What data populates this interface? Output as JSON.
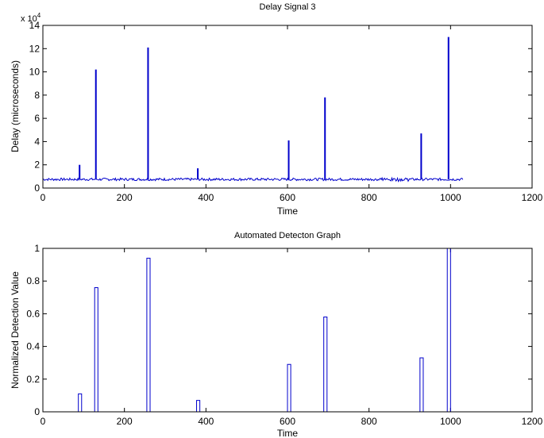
{
  "chart_data": [
    {
      "type": "line",
      "title": "Delay Signal 3",
      "xlabel": "Time",
      "ylabel": "Delay (microseconds)",
      "y_multiplier_label": "x 10",
      "y_multiplier_exponent": "4",
      "xlim": [
        0,
        1200
      ],
      "ylim": [
        0,
        14
      ],
      "xticks": [
        0,
        200,
        400,
        600,
        800,
        1000,
        1200
      ],
      "yticks": [
        0,
        2,
        4,
        6,
        8,
        10,
        12,
        14
      ],
      "grid": false,
      "line_color": "#0000cc",
      "x_range": [
        0,
        1030
      ],
      "baseline": 0.75,
      "spikes": [
        {
          "x": 90,
          "y": 2.0
        },
        {
          "x": 130,
          "y": 10.2
        },
        {
          "x": 258,
          "y": 12.1
        },
        {
          "x": 380,
          "y": 1.7
        },
        {
          "x": 603,
          "y": 4.1
        },
        {
          "x": 692,
          "y": 7.8
        },
        {
          "x": 928,
          "y": 4.7
        },
        {
          "x": 995,
          "y": 13.0
        }
      ]
    },
    {
      "type": "line",
      "title": "Automated Detecton Graph",
      "xlabel": "Time",
      "ylabel": "Normalized Detection Value",
      "xlim": [
        0,
        1200
      ],
      "ylim": [
        0,
        1
      ],
      "xticks": [
        0,
        200,
        400,
        600,
        800,
        1000,
        1200
      ],
      "yticks": [
        0,
        0.2,
        0.4,
        0.6,
        0.8,
        1
      ],
      "grid": false,
      "line_color": "#0000cc",
      "x_range": [
        0,
        1190
      ],
      "pulses": [
        {
          "x_start": 87,
          "x_end": 95,
          "y": 0.11
        },
        {
          "x_start": 127,
          "x_end": 135,
          "y": 0.76
        },
        {
          "x_start": 255,
          "x_end": 263,
          "y": 0.94
        },
        {
          "x_start": 377,
          "x_end": 385,
          "y": 0.07
        },
        {
          "x_start": 600,
          "x_end": 608,
          "y": 0.29
        },
        {
          "x_start": 689,
          "x_end": 697,
          "y": 0.58
        },
        {
          "x_start": 925,
          "x_end": 933,
          "y": 0.33
        },
        {
          "x_start": 992,
          "x_end": 1000,
          "y": 1.0
        }
      ]
    }
  ]
}
